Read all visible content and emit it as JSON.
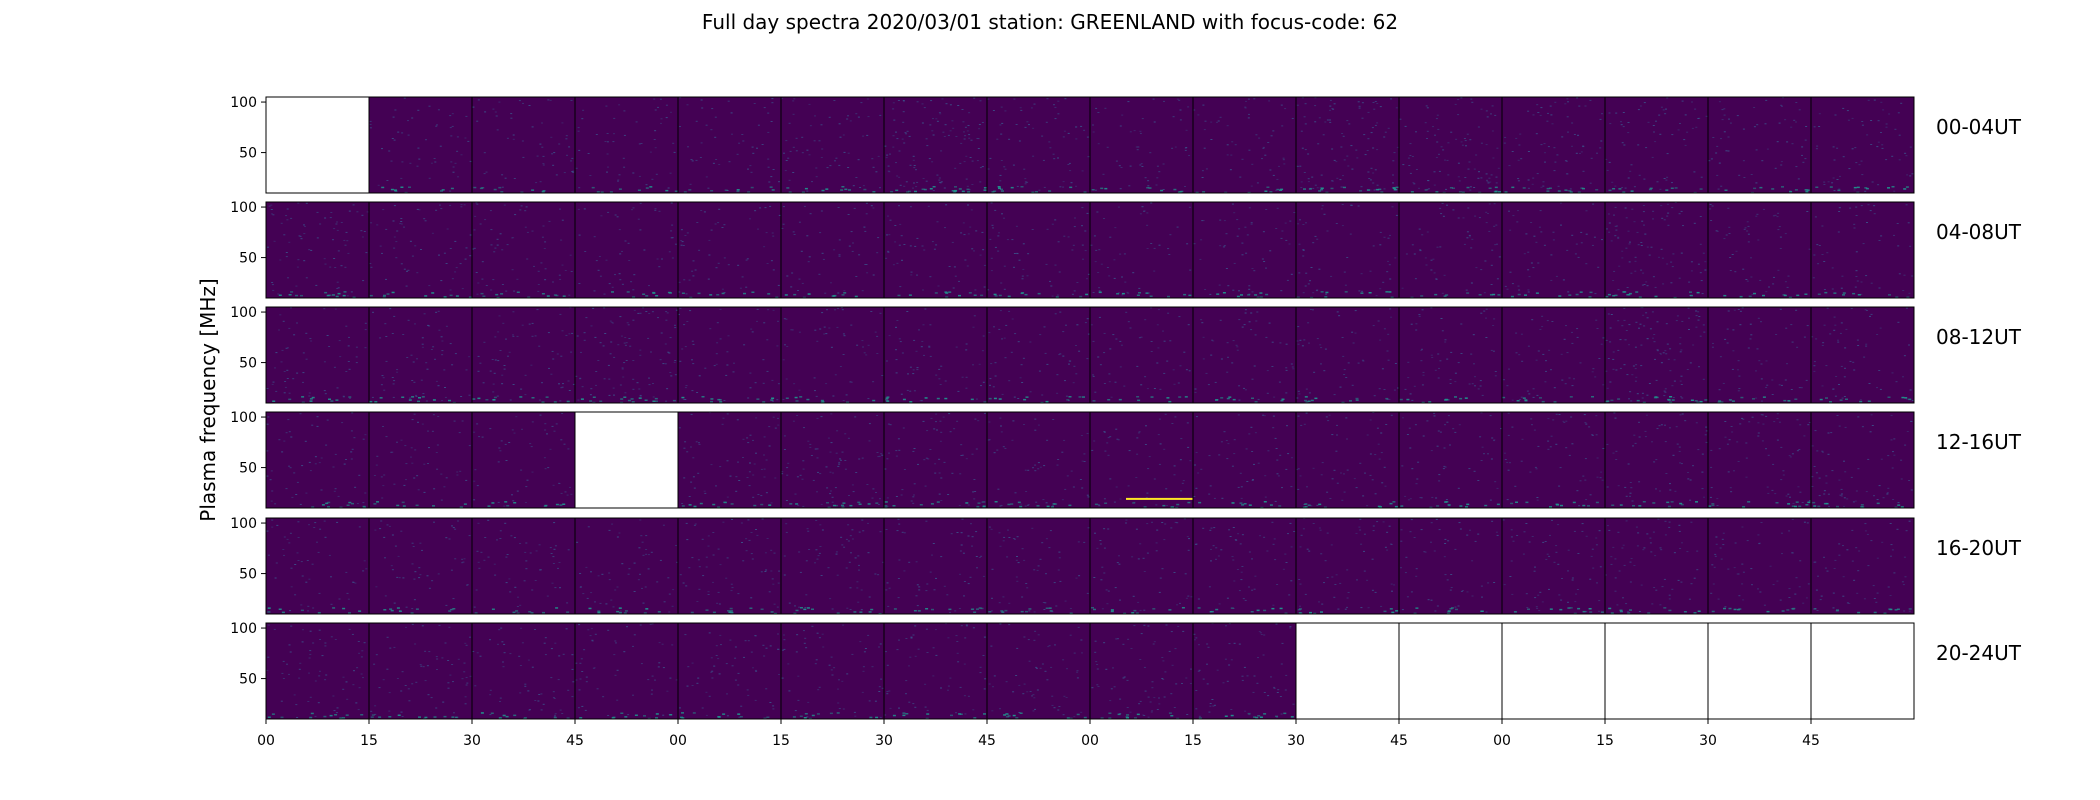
{
  "chart_data": {
    "type": "heatmap",
    "title": "Full day spectra 2020/03/01 station: GREENLAND with focus-code: 62",
    "ylabel": "Plasma frequency [MHz]",
    "xlabel": "",
    "y_ticks": [
      50,
      100
    ],
    "ylim": [
      10,
      105
    ],
    "x_tick_labels": [
      "00",
      "15",
      "30",
      "45",
      "00",
      "15",
      "30",
      "45",
      "00",
      "15",
      "30",
      "45",
      "00",
      "15",
      "30",
      "45"
    ],
    "panels_per_row": 16,
    "panel_minutes": 15,
    "colormap": "viridis",
    "rows": [
      {
        "label": "00-04UT",
        "intensity": [
          null,
          0.05,
          0.06,
          0.05,
          0.05,
          0.1,
          0.3,
          0.12,
          0.06,
          0.06,
          0.25,
          0.2,
          0.14,
          0.1,
          0.08,
          0.1
        ]
      },
      {
        "label": "04-08UT",
        "intensity": [
          0.15,
          0.08,
          0.1,
          0.05,
          0.06,
          0.05,
          0.08,
          0.08,
          0.04,
          0.06,
          0.07,
          0.08,
          0.05,
          0.2,
          0.05,
          0.05
        ]
      },
      {
        "label": "08-12UT",
        "intensity": [
          0.08,
          0.1,
          0.1,
          0.22,
          0.07,
          0.06,
          0.07,
          0.08,
          0.06,
          0.06,
          0.07,
          0.08,
          0.06,
          0.28,
          0.07,
          0.08
        ]
      },
      {
        "label": "12-16UT",
        "intensity": [
          0.08,
          0.05,
          0.06,
          null,
          0.1,
          0.15,
          0.12,
          0.07,
          0.06,
          0.06,
          0.07,
          0.08,
          0.08,
          0.1,
          0.12,
          0.12
        ]
      },
      {
        "label": "16-20UT",
        "intensity": [
          0.06,
          0.06,
          0.06,
          0.07,
          0.1,
          0.1,
          0.07,
          0.07,
          0.07,
          0.08,
          0.08,
          0.06,
          0.1,
          0.1,
          0.07,
          0.07
        ]
      },
      {
        "label": "20-24UT",
        "intensity": [
          0.1,
          0.1,
          0.08,
          0.07,
          0.08,
          0.08,
          0.08,
          0.08,
          0.12,
          0.1,
          null,
          null,
          null,
          null,
          null,
          null
        ]
      }
    ],
    "colors": {
      "background": "#440154",
      "speckle": "#3b528b",
      "speckle_bright": "#21918c",
      "highlight": "#fde725",
      "frame": "#000000"
    }
  }
}
